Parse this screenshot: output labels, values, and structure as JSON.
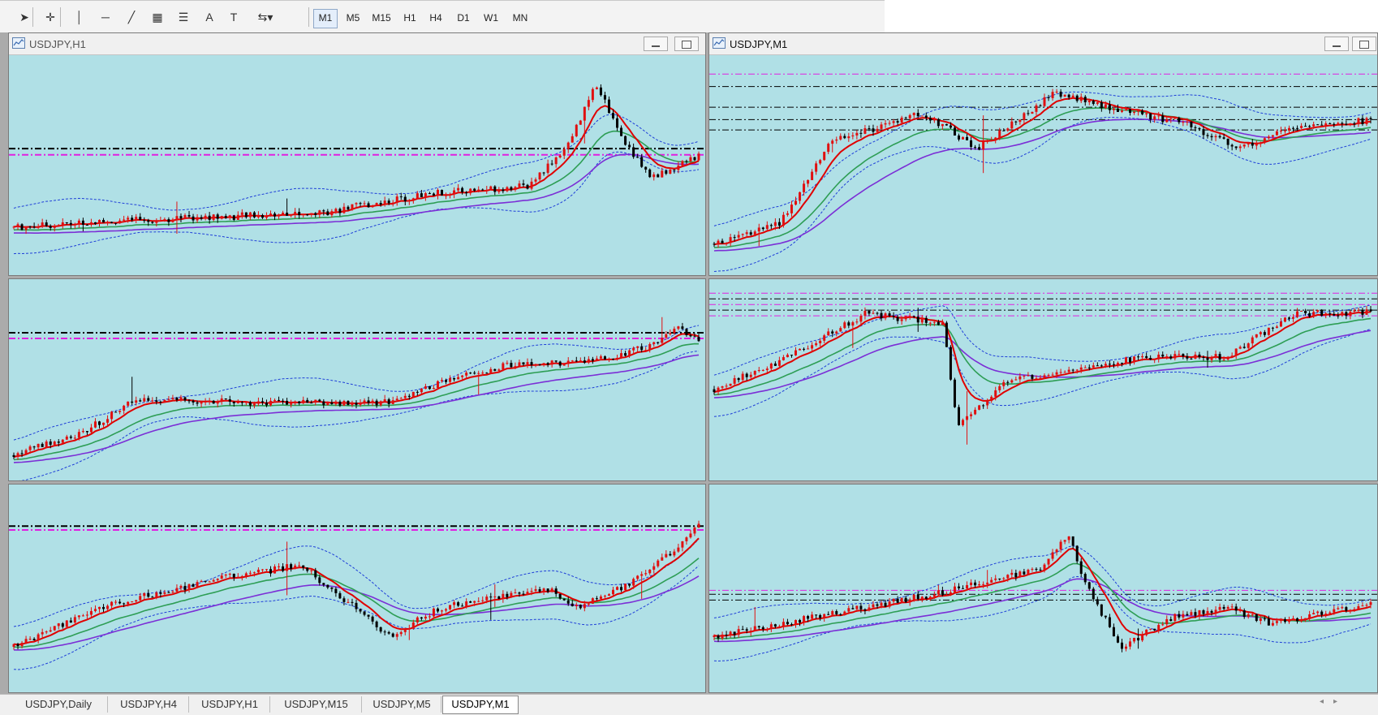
{
  "toolbar": {
    "tools": [
      {
        "name": "cursor-arrow-icon",
        "glyph": "➤"
      },
      {
        "name": "crosshair-icon",
        "glyph": "✛"
      },
      {
        "name": "vertical-line-icon",
        "glyph": "│"
      },
      {
        "name": "horizontal-line-icon",
        "glyph": "─"
      },
      {
        "name": "trendline-icon",
        "glyph": "╱"
      },
      {
        "name": "equidistant-channel-icon",
        "glyph": "▦"
      },
      {
        "name": "fibonacci-icon",
        "glyph": "☰"
      },
      {
        "name": "text-icon",
        "glyph": "A"
      },
      {
        "name": "text-label-icon",
        "glyph": "T"
      },
      {
        "name": "arrows-dropdown-icon",
        "glyph": "⇆▾"
      }
    ],
    "timeframes": [
      "M1",
      "M5",
      "M15",
      "H1",
      "H4",
      "D1",
      "W1",
      "MN"
    ],
    "active_timeframe": "M1"
  },
  "windows": [
    {
      "id": "w1",
      "title": "USDJPY,H1",
      "active": false
    },
    {
      "id": "w2",
      "title": "USDJPY,M1",
      "active": true
    }
  ],
  "tabs": [
    "USDJPY,Daily",
    "USDJPY,H4",
    "USDJPY,H1",
    "USDJPY,M15",
    "USDJPY,M5",
    "USDJPY,M1"
  ],
  "active_tab": "USDJPY,M1",
  "colors": {
    "chart_bg": "#b0e0e6",
    "bull_candle": "#e01010",
    "bear_candle": "#000000",
    "ma_fast": "#e00000",
    "ma_mid": "#2e9e55",
    "ma_slow": "#7b2fd6",
    "bands": "#1f3fd8",
    "level_magenta": "#e020e0",
    "level_black": "#000000"
  },
  "chart_data": [
    {
      "type": "candlestick",
      "panel": "top-left",
      "title": "USDJPY,H1",
      "shape": [
        [
          0,
          0.2
        ],
        [
          0.15,
          0.23
        ],
        [
          0.45,
          0.27
        ],
        [
          0.6,
          0.36
        ],
        [
          0.75,
          0.4
        ],
        [
          0.81,
          0.6
        ],
        [
          0.85,
          0.9
        ],
        [
          0.89,
          0.62
        ],
        [
          0.93,
          0.44
        ],
        [
          0.96,
          0.48
        ],
        [
          1,
          0.55
        ]
      ],
      "overlays": [
        "ma_fast",
        "ma_mid",
        "ma_slow",
        "bands"
      ],
      "levels": [
        0.55,
        0.58
      ]
    },
    {
      "type": "candlestick",
      "panel": "top-right",
      "title": "USDJPY,M1",
      "shape": [
        [
          0,
          0.12
        ],
        [
          0.1,
          0.22
        ],
        [
          0.18,
          0.62
        ],
        [
          0.32,
          0.75
        ],
        [
          0.4,
          0.58
        ],
        [
          0.52,
          0.85
        ],
        [
          0.6,
          0.78
        ],
        [
          0.72,
          0.7
        ],
        [
          0.8,
          0.58
        ],
        [
          0.86,
          0.66
        ],
        [
          1,
          0.72
        ]
      ],
      "overlays": [
        "ma_fast",
        "ma_mid",
        "ma_slow",
        "bands"
      ],
      "levels": [
        0.67,
        0.72,
        0.78,
        0.88,
        0.94
      ]
    },
    {
      "type": "candlestick",
      "panel": "middle-left",
      "title": "",
      "shape": [
        [
          0,
          0.1
        ],
        [
          0.1,
          0.22
        ],
        [
          0.18,
          0.4
        ],
        [
          0.35,
          0.38
        ],
        [
          0.55,
          0.38
        ],
        [
          0.62,
          0.48
        ],
        [
          0.72,
          0.58
        ],
        [
          0.85,
          0.6
        ],
        [
          0.93,
          0.68
        ],
        [
          0.97,
          0.78
        ],
        [
          1,
          0.7
        ]
      ],
      "overlays": [
        "ma_fast",
        "ma_mid",
        "ma_slow",
        "bands"
      ],
      "levels": [
        0.72,
        0.75
      ]
    },
    {
      "type": "candlestick",
      "panel": "middle-right",
      "title": "",
      "shape": [
        [
          0,
          0.45
        ],
        [
          0.1,
          0.6
        ],
        [
          0.23,
          0.85
        ],
        [
          0.35,
          0.8
        ],
        [
          0.37,
          0.25
        ],
        [
          0.45,
          0.5
        ],
        [
          0.55,
          0.55
        ],
        [
          0.65,
          0.62
        ],
        [
          0.78,
          0.62
        ],
        [
          0.88,
          0.85
        ],
        [
          1,
          0.86
        ]
      ],
      "overlays": [
        "ma_fast",
        "ma_mid",
        "ma_slow",
        "bands"
      ],
      "levels": [
        0.84,
        0.87,
        0.9,
        0.93,
        0.96
      ]
    },
    {
      "type": "candlestick",
      "panel": "bottom-left",
      "title": "",
      "shape": [
        [
          0,
          0.2
        ],
        [
          0.12,
          0.4
        ],
        [
          0.3,
          0.55
        ],
        [
          0.42,
          0.62
        ],
        [
          0.55,
          0.25
        ],
        [
          0.62,
          0.4
        ],
        [
          0.78,
          0.5
        ],
        [
          0.82,
          0.4
        ],
        [
          0.9,
          0.52
        ],
        [
          0.96,
          0.68
        ],
        [
          1,
          0.82
        ]
      ],
      "overlays": [
        "ma_fast",
        "ma_mid",
        "ma_slow",
        "bands"
      ],
      "levels": [
        0.8,
        0.82
      ]
    },
    {
      "type": "candlestick",
      "panel": "bottom-right",
      "title": "",
      "shape": [
        [
          0,
          0.25
        ],
        [
          0.15,
          0.35
        ],
        [
          0.35,
          0.48
        ],
        [
          0.5,
          0.6
        ],
        [
          0.54,
          0.78
        ],
        [
          0.56,
          0.55
        ],
        [
          0.62,
          0.2
        ],
        [
          0.7,
          0.35
        ],
        [
          0.78,
          0.4
        ],
        [
          0.85,
          0.32
        ],
        [
          1,
          0.42
        ]
      ],
      "overlays": [
        "ma_fast",
        "ma_mid",
        "ma_slow",
        "bands"
      ],
      "levels": [
        0.44,
        0.47,
        0.49
      ]
    }
  ]
}
